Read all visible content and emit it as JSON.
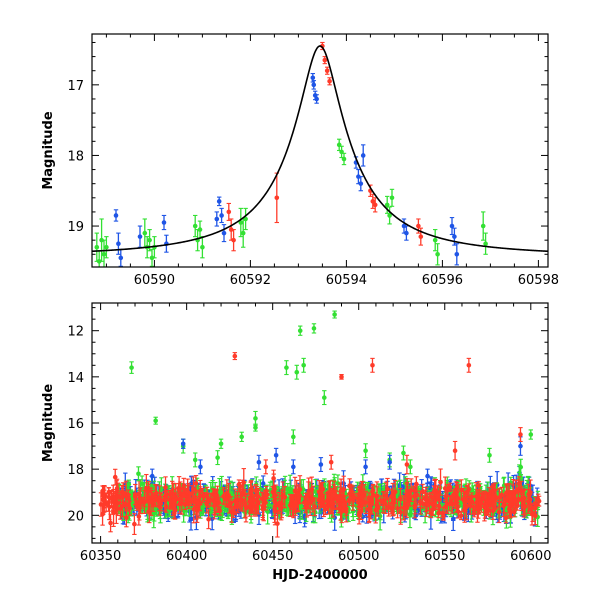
{
  "colors": {
    "blue": "#1f55e6",
    "green": "#33e033",
    "red": "#ff3b2a",
    "model": "#000000"
  },
  "chart_data": [
    {
      "type": "scatter",
      "name": "zoom",
      "ylabel": "Magnitude",
      "xlabel": "",
      "xlim": [
        60588.7,
        60598.2
      ],
      "ylim": [
        19.58,
        16.28
      ],
      "y_inverted": true,
      "xticks": [
        60590,
        60592,
        60594,
        60596,
        60598
      ],
      "yticks": [
        17,
        18,
        19
      ],
      "model": {
        "type": "lorentzian",
        "peak_x": 60593.45,
        "peak_mag": 16.45,
        "base_mag": 19.44,
        "width": 0.35
      },
      "series": [
        {
          "color": "green",
          "points": [
            [
              60588.8,
              19.3,
              0.2
            ],
            [
              60588.85,
              19.5,
              0.15
            ],
            [
              60588.9,
              19.2,
              0.3
            ],
            [
              60588.95,
              19.4,
              0.2
            ],
            [
              60589.0,
              19.3,
              0.15
            ],
            [
              60589.8,
              19.1,
              0.2
            ],
            [
              60589.85,
              19.3,
              0.15
            ],
            [
              60589.9,
              19.2,
              0.15
            ],
            [
              60589.95,
              19.45,
              0.12
            ],
            [
              60590.0,
              19.3,
              0.15
            ],
            [
              60590.85,
              19.0,
              0.15
            ],
            [
              60590.9,
              19.2,
              0.15
            ],
            [
              60590.95,
              19.05,
              0.12
            ],
            [
              60591.0,
              19.3,
              0.15
            ],
            [
              60591.8,
              18.95,
              0.2
            ],
            [
              60591.85,
              19.1,
              0.2
            ],
            [
              60591.9,
              18.9,
              0.15
            ],
            [
              60593.85,
              17.85,
              0.08
            ],
            [
              60593.9,
              17.95,
              0.08
            ],
            [
              60593.95,
              18.05,
              0.08
            ],
            [
              60594.85,
              18.7,
              0.12
            ],
            [
              60594.9,
              18.85,
              0.12
            ],
            [
              60594.95,
              18.6,
              0.12
            ],
            [
              60595.85,
              19.2,
              0.15
            ],
            [
              60595.9,
              19.4,
              0.15
            ],
            [
              60596.85,
              19.0,
              0.2
            ],
            [
              60596.9,
              19.25,
              0.15
            ]
          ]
        },
        {
          "color": "blue",
          "points": [
            [
              60589.2,
              18.85,
              0.08
            ],
            [
              60589.25,
              19.25,
              0.15
            ],
            [
              60589.3,
              19.45,
              0.12
            ],
            [
              60589.7,
              19.15,
              0.15
            ],
            [
              60590.2,
              18.95,
              0.1
            ],
            [
              60590.25,
              19.25,
              0.12
            ],
            [
              60591.3,
              18.9,
              0.1
            ],
            [
              60591.35,
              18.65,
              0.06
            ],
            [
              60591.4,
              18.85,
              0.1
            ],
            [
              60591.45,
              19.1,
              0.12
            ],
            [
              60593.3,
              16.9,
              0.06
            ],
            [
              60593.32,
              17.0,
              0.06
            ],
            [
              60593.35,
              17.15,
              0.06
            ],
            [
              60593.38,
              17.2,
              0.06
            ],
            [
              60594.2,
              18.1,
              0.08
            ],
            [
              60594.25,
              18.3,
              0.1
            ],
            [
              60594.3,
              18.4,
              0.1
            ],
            [
              60594.35,
              18.0,
              0.15
            ],
            [
              60595.2,
              19.0,
              0.1
            ],
            [
              60595.25,
              19.1,
              0.1
            ],
            [
              60596.2,
              19.0,
              0.12
            ],
            [
              60596.25,
              19.15,
              0.12
            ],
            [
              60596.3,
              19.4,
              0.15
            ]
          ]
        },
        {
          "color": "red",
          "points": [
            [
              60591.55,
              18.8,
              0.12
            ],
            [
              60591.6,
              19.05,
              0.15
            ],
            [
              60591.65,
              19.2,
              0.15
            ],
            [
              60592.55,
              18.6,
              0.35
            ],
            [
              60593.5,
              16.45,
              0.05
            ],
            [
              60593.55,
              16.65,
              0.05
            ],
            [
              60593.6,
              16.8,
              0.05
            ],
            [
              60593.65,
              16.95,
              0.05
            ],
            [
              60594.5,
              18.5,
              0.08
            ],
            [
              60594.55,
              18.65,
              0.1
            ],
            [
              60594.6,
              18.7,
              0.1
            ],
            [
              60595.5,
              19.0,
              0.1
            ],
            [
              60595.55,
              19.15,
              0.12
            ]
          ]
        }
      ]
    },
    {
      "type": "scatter",
      "name": "full",
      "ylabel": "Magnitude",
      "xlabel": "HJD-2400000",
      "xlim": [
        60345,
        60610
      ],
      "ylim": [
        21.2,
        10.8
      ],
      "y_inverted": true,
      "xticks": [
        60350,
        60400,
        60450,
        60500,
        60550,
        60600
      ],
      "yticks": [
        12,
        14,
        16,
        18,
        20
      ],
      "base_mag": 19.35,
      "base_scatter": 0.55,
      "base_n_per_series": 520,
      "base_ranges": {
        "blue": [
          60360,
          60605
        ],
        "green": [
          60360,
          60605
        ],
        "red": [
          60350,
          60605
        ]
      },
      "series": [
        {
          "color": "green",
          "outliers": [
            [
              60368,
              13.6,
              0.25
            ],
            [
              60382,
              15.9,
              0.15
            ],
            [
              60398,
              17.0,
              0.3
            ],
            [
              60405,
              17.6,
              0.3
            ],
            [
              60418,
              17.5,
              0.3
            ],
            [
              60420,
              16.9,
              0.2
            ],
            [
              60432,
              16.6,
              0.2
            ],
            [
              60440,
              16.2,
              0.15
            ],
            [
              60440,
              15.8,
              0.3
            ],
            [
              60458,
              13.6,
              0.3
            ],
            [
              60464,
              13.8,
              0.3
            ],
            [
              60466,
              12.0,
              0.2
            ],
            [
              60468,
              13.5,
              0.3
            ],
            [
              60474,
              11.9,
              0.2
            ],
            [
              60480,
              14.9,
              0.3
            ],
            [
              60486,
              11.3,
              0.15
            ],
            [
              60504,
              17.2,
              0.3
            ],
            [
              60518,
              17.6,
              0.3
            ],
            [
              60526,
              17.3,
              0.3
            ],
            [
              60530,
              17.9,
              0.3
            ],
            [
              60576,
              17.4,
              0.3
            ],
            [
              60600,
              16.5,
              0.2
            ],
            [
              60462,
              16.6,
              0.3
            ],
            [
              60372,
              18.2,
              0.3
            ]
          ]
        },
        {
          "color": "blue",
          "outliers": [
            [
              60398,
              16.9,
              0.2
            ],
            [
              60408,
              17.9,
              0.3
            ],
            [
              60442,
              17.7,
              0.3
            ],
            [
              60452,
              17.4,
              0.3
            ],
            [
              60462,
              17.9,
              0.3
            ],
            [
              60478,
              17.8,
              0.3
            ],
            [
              60504,
              17.9,
              0.3
            ],
            [
              60518,
              17.7,
              0.3
            ],
            [
              60540,
              18.3,
              0.3
            ],
            [
              60594,
              17.0,
              0.4
            ],
            [
              60380,
              18.3,
              0.3
            ]
          ]
        },
        {
          "color": "red",
          "outliers": [
            [
              60428,
              13.1,
              0.15
            ],
            [
              60490,
              14.0,
              0.1
            ],
            [
              60508,
              13.5,
              0.3
            ],
            [
              60564,
              13.5,
              0.3
            ],
            [
              60528,
              17.8,
              0.4
            ],
            [
              60556,
              17.2,
              0.4
            ],
            [
              60594,
              16.5,
              0.3
            ],
            [
              60446,
              17.9,
              0.3
            ],
            [
              60484,
              17.7,
              0.3
            ]
          ]
        }
      ]
    }
  ]
}
